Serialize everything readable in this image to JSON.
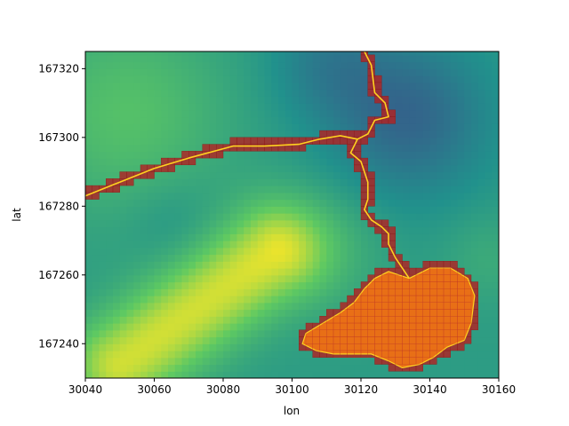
{
  "chart_data": {
    "type": "heatmap",
    "xlabel": "lon",
    "ylabel": "lat",
    "xlim": [
      30040,
      30160
    ],
    "ylim": [
      167230,
      167325
    ],
    "xticks": [
      30040,
      30060,
      30080,
      30100,
      30120,
      30140,
      30160
    ],
    "yticks": [
      167240,
      167260,
      167280,
      167300,
      167320
    ],
    "grid": false,
    "colormap": "viridis",
    "colors": {
      "river_line": "#ffd21f",
      "river_cells": "#b02323",
      "lake_fill": "#ff7f0e",
      "lake_cells": "#b02323"
    },
    "river_main": [
      [
        30040,
        167283
      ],
      [
        30050,
        167287
      ],
      [
        30060,
        167291
      ],
      [
        30070,
        167294
      ],
      [
        30083,
        167297.5
      ],
      [
        30092,
        167297.5
      ],
      [
        30102,
        167298
      ],
      [
        30108,
        167299.5
      ],
      [
        30114,
        167300.5
      ],
      [
        30119,
        167299.5
      ]
    ],
    "river_north": [
      [
        30121,
        167325
      ],
      [
        30123,
        167321
      ],
      [
        30124,
        167313
      ],
      [
        30127,
        167310
      ],
      [
        30128,
        167306
      ],
      [
        30124,
        167305
      ],
      [
        30122,
        167301
      ],
      [
        30119,
        167299.5
      ],
      [
        30117,
        167295.5
      ],
      [
        30120,
        167293
      ],
      [
        30122,
        167287
      ],
      [
        30122,
        167282
      ],
      [
        30121,
        167279
      ],
      [
        30123,
        167276
      ],
      [
        30126,
        167274
      ],
      [
        30128,
        167272
      ],
      [
        30128,
        167269
      ],
      [
        30130,
        167265
      ],
      [
        30132,
        167262
      ],
      [
        30134,
        167259
      ]
    ],
    "lake": [
      [
        30134,
        167259
      ],
      [
        30140,
        167262
      ],
      [
        30146,
        167262
      ],
      [
        30151,
        167259
      ],
      [
        30153,
        167254
      ],
      [
        30152,
        167246
      ],
      [
        30150,
        167241
      ],
      [
        30145,
        167239
      ],
      [
        30141,
        167236
      ],
      [
        30137,
        167234
      ],
      [
        30132,
        167233
      ],
      [
        30128,
        167235
      ],
      [
        30123,
        167237
      ],
      [
        30118,
        167237
      ],
      [
        30112,
        167237
      ],
      [
        30107,
        167238
      ],
      [
        30103,
        167240
      ],
      [
        30104,
        167243
      ],
      [
        30109,
        167246
      ],
      [
        30114,
        167249
      ],
      [
        30118,
        167252
      ],
      [
        30121,
        167256
      ],
      [
        30124,
        167259
      ],
      [
        30128,
        167261
      ]
    ],
    "elevation_field": {
      "base": 0.55,
      "features": [
        {
          "kind": "ridge",
          "from": [
            30050,
            167234
          ],
          "to": [
            30095,
            167267
          ],
          "width": 10,
          "strength": 0.38
        },
        {
          "kind": "hill",
          "at": [
            30052,
            167307
          ],
          "radius": 20,
          "strength": 0.16
        },
        {
          "kind": "hill",
          "at": [
            30110,
            167268
          ],
          "radius": 12,
          "strength": 0.08
        },
        {
          "kind": "hill",
          "at": [
            30157,
            167265
          ],
          "radius": 9,
          "strength": 0.06
        },
        {
          "kind": "low",
          "at": [
            30134,
            167306
          ],
          "radius": 16,
          "strength": -0.22
        },
        {
          "kind": "low",
          "at": [
            30110,
            167322
          ],
          "radius": 12,
          "strength": -0.12
        },
        {
          "kind": "low",
          "at": [
            30065,
            167276
          ],
          "radius": 9,
          "strength": -0.05
        }
      ]
    }
  }
}
